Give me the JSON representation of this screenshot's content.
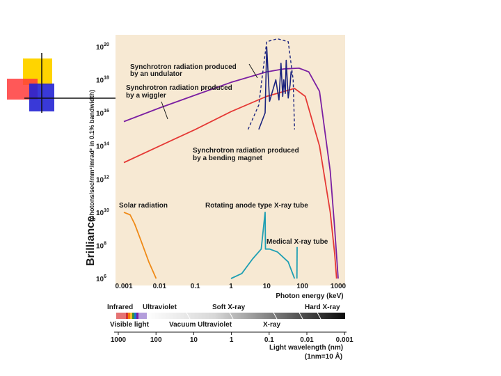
{
  "chart_data": {
    "type": "line",
    "x_scale": "log",
    "y_scale": "log",
    "xlim": [
      0.001,
      1000
    ],
    "ylim": [
      1000000.0,
      1e+20
    ],
    "xlabel": "Photon energy (keV)",
    "ylabel_main": "Brilliance",
    "ylabel_units": "(photons/sec/mm²/mrad² in 0.1% bandwidth)",
    "x_ticks": [
      "0.001",
      "0.01",
      "0.1",
      "1",
      "10",
      "100",
      "1000"
    ],
    "y_ticks": [
      {
        "base": "10",
        "exp": "6"
      },
      {
        "base": "10",
        "exp": "8"
      },
      {
        "base": "10",
        "exp": "10"
      },
      {
        "base": "10",
        "exp": "12"
      },
      {
        "base": "10",
        "exp": "14"
      },
      {
        "base": "10",
        "exp": "16"
      },
      {
        "base": "10",
        "exp": "18"
      },
      {
        "base": "10",
        "exp": "20"
      }
    ],
    "annotations": {
      "undulator": [
        "Synchrotron radiation produced",
        "by an undulator"
      ],
      "wiggler": [
        "Synchrotron radiation produced",
        "by a wiggler"
      ],
      "bending": [
        "Synchrotron radiation produced",
        "by a bending magnet"
      ],
      "solar": "Solar radiation",
      "rotating": "Rotating anode type X-ray tube",
      "medical": "Medical X-ray tube"
    },
    "series": [
      {
        "key": "wiggler",
        "color": "#7b1fa2",
        "points": [
          [
            0.001,
            3000000000000000.0
          ],
          [
            0.01,
            2e+16
          ],
          [
            0.1,
            1.2e+17
          ],
          [
            1,
            7e+17
          ],
          [
            10,
            3e+18
          ],
          [
            30,
            4.5e+18
          ],
          [
            80,
            5e+18
          ],
          [
            150,
            3e+18
          ],
          [
            300,
            2e+17
          ],
          [
            600,
            3000000000000.0
          ],
          [
            800,
            1000000000.0
          ],
          [
            1000,
            1000000.0
          ]
        ]
      },
      {
        "key": "bending",
        "color": "#e53935",
        "points": [
          [
            0.001,
            10000000000000.0
          ],
          [
            0.01,
            100000000000000.0
          ],
          [
            0.1,
            1000000000000000.0
          ],
          [
            1,
            1.2e+16
          ],
          [
            10,
            1e+17
          ],
          [
            60,
            3e+17
          ],
          [
            120,
            1e+17
          ],
          [
            300,
            100000000000000.0
          ],
          [
            600,
            10000000000.0
          ],
          [
            800,
            30000000.0
          ],
          [
            900,
            1000000.0
          ]
        ]
      },
      {
        "key": "undulator",
        "color": "#1a237e",
        "points": [
          [
            6,
            1000000000000000.0
          ],
          [
            9,
            1e+16
          ],
          [
            10,
            1e+20
          ],
          [
            12,
            5e+16
          ],
          [
            18,
            1e+18
          ],
          [
            22,
            6e+16
          ],
          [
            25,
            1e+19
          ],
          [
            28,
            1e+17
          ],
          [
            30,
            1e+18
          ],
          [
            33,
            1.5e+17
          ],
          [
            35,
            1.5e+19
          ],
          [
            40,
            8e+16
          ],
          [
            45,
            5e+17
          ],
          [
            48,
            3e+18
          ],
          [
            50,
            2e+18
          ]
        ]
      },
      {
        "key": "undulator_envelope",
        "color": "#1a237e",
        "dashed": true,
        "points": [
          [
            3,
            1000000000000000.0
          ],
          [
            6,
            3e+16
          ],
          [
            8,
            5e+18
          ],
          [
            10,
            2e+20
          ],
          [
            20,
            3e+20
          ],
          [
            40,
            2e+20
          ],
          [
            55,
            1e+18
          ],
          [
            60,
            1000000000000000.0
          ]
        ]
      },
      {
        "key": "solar",
        "color": "#ef8a17",
        "points": [
          [
            0.001,
            10000000000.0
          ],
          [
            0.0015,
            7000000000.0
          ],
          [
            0.002,
            2000000000.0
          ],
          [
            0.003,
            200000000.0
          ],
          [
            0.005,
            10000000.0
          ],
          [
            0.008,
            1000000.0
          ]
        ]
      },
      {
        "key": "rotating",
        "color": "#1e9fb3",
        "points": [
          [
            1,
            1000000.0
          ],
          [
            2,
            2000000.0
          ],
          [
            4,
            15000000.0
          ],
          [
            7,
            60000000.0
          ],
          [
            9,
            10000000000.0
          ],
          [
            9.2,
            60000000.0
          ],
          [
            12,
            60000000.0
          ],
          [
            20,
            40000000.0
          ],
          [
            40,
            10000000.0
          ],
          [
            60,
            1000000.0
          ]
        ]
      },
      {
        "key": "medical",
        "color": "#1e9fb3",
        "points": [
          [
            70,
            1000000.0
          ],
          [
            71,
            80000000.0
          ]
        ]
      }
    ],
    "spectrum": {
      "labels_top": [
        "Infrared",
        "Ultraviolet",
        "Soft X-ray",
        "Hard X-ray"
      ],
      "labels_bottom": [
        "Visible light",
        "Vacuum Ultraviolet",
        "X-ray"
      ],
      "wavelength_ticks": [
        "1000",
        "100",
        "10",
        "1",
        "0.1",
        "0.01",
        "0.001"
      ],
      "wavelength_label": "Light wavelength (nm)",
      "unit_note": "(1nm=10 Å)"
    }
  }
}
